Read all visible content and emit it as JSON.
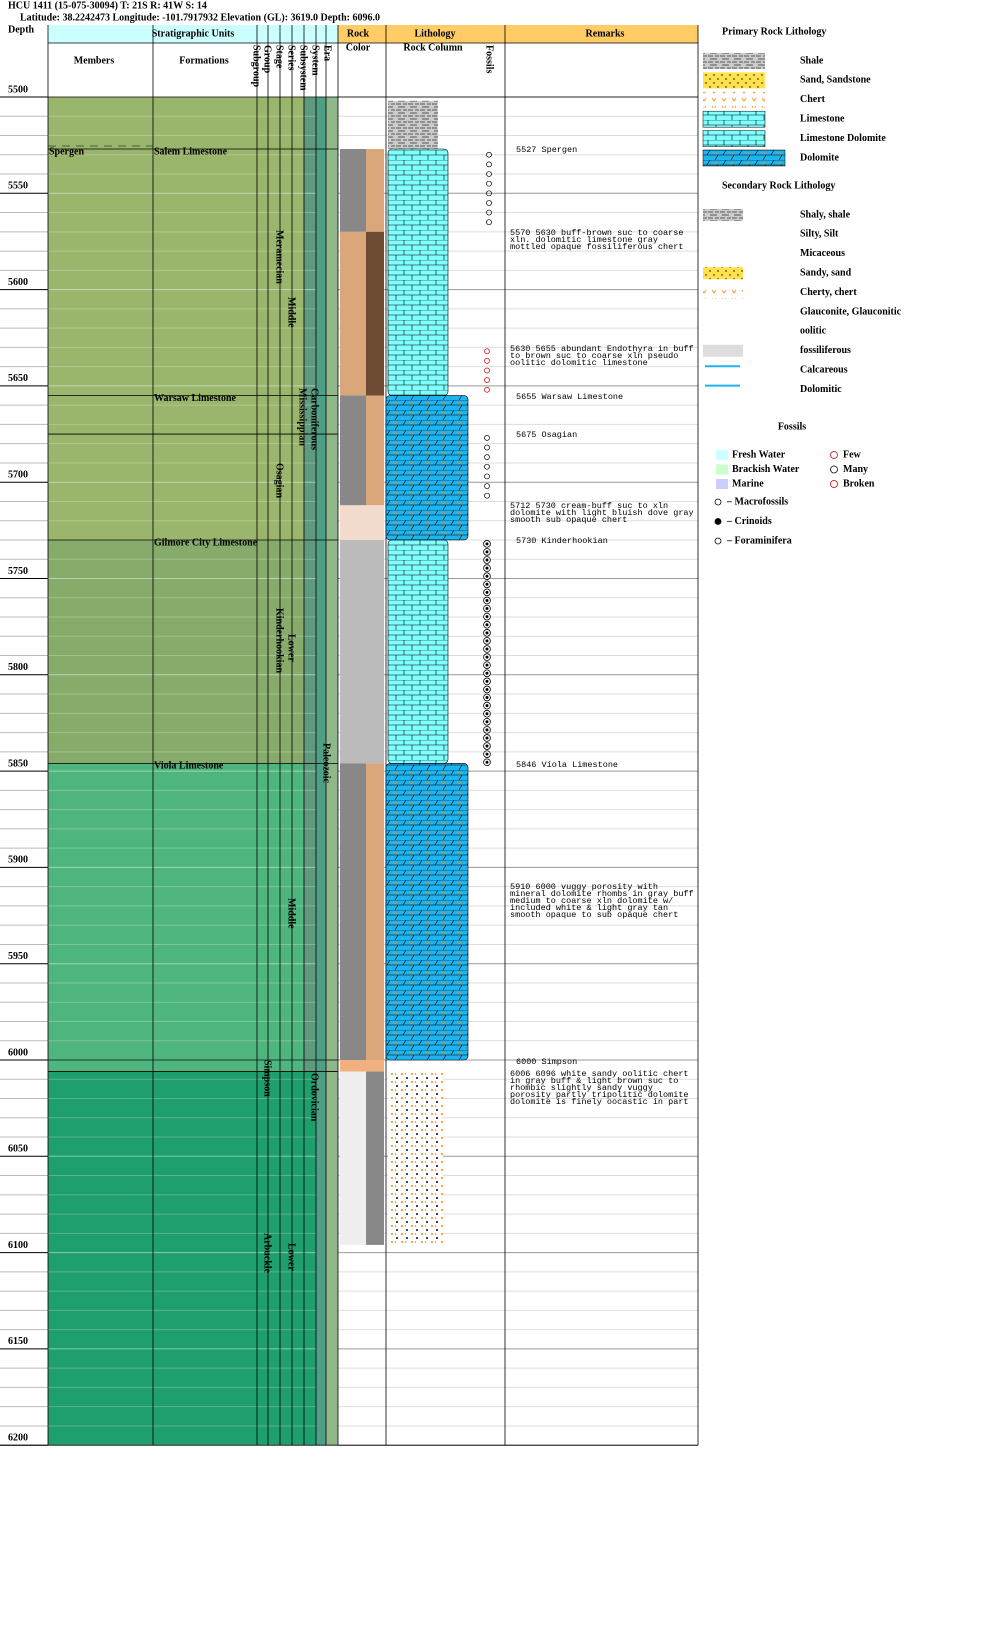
{
  "header": {
    "line1": "HCU 1411 (15-075-30094) T: 21S R: 41W S: 14",
    "line2": "Latitude: 38.2242473 Longitude: -101.7917932 Elevation (GL): 3619.0 Depth: 6096.0"
  },
  "columns": {
    "depth": "Depth",
    "strat": "Stratigraphic Units",
    "members": "Members",
    "formations": "Formations",
    "subgroup": "Subgroup",
    "group": "Group",
    "stage": "Stage",
    "series": "Series",
    "subsystem": "Subsystem",
    "system": "System",
    "era": "Era",
    "rock": "Rock",
    "color": "Color",
    "lithology": "Lithology",
    "rock_column": "Rock Column",
    "fossils": "Fossils",
    "remarks": "Remarks"
  },
  "depths": [
    "5500",
    "5550",
    "5600",
    "5650",
    "5700",
    "5750",
    "5800",
    "5850",
    "5900",
    "5950",
    "6000",
    "6050",
    "6100",
    "6150",
    "6200"
  ],
  "members": [
    "Spergen"
  ],
  "formations": [
    "Salem Limestone",
    "Warsaw Limestone",
    "Gilmore City Limestone",
    "Viola Limestone"
  ],
  "units": [
    "Meramecian",
    "Middle",
    "Mississippian",
    "Carboniferous",
    "Osagian",
    "Kinderhookian",
    "Lower",
    "Paleozoic",
    "Middle",
    "Simpson",
    "Ordovician",
    "Arbuckle",
    "Lower"
  ],
  "remarks": [
    "5527 Spergen",
    "5570 5630 buff-brown suc to coarse xln. dolomitic limestone gray mottled opaque fossiliferous chert",
    "5630 5655 abundant Endothyra in buff to brown suc to coarse xln pseudo oolitic dolomitic limestone",
    "5655 Warsaw Limestone",
    "5675 Osagian",
    "5712 5730 cream-buff suc to xln dolomite with light bluish dove gray smooth sub opaque chert",
    "5730 Kinderhookian",
    "5846 Viola Limestone",
    "5910 6000 vuggy porosity with mineral dolomite rhombs in gray buff medium to coarse xln dolomite w/ included white & light gray tan smooth opaque to sub opaque chert",
    "6000 Simpson",
    "6006 6096 white sandy oolitic chert in gray buff & light brown suc to rhombic slightly sandy vuggy porosity partly tripolitic dolomite dolomite is finely oocastic in part"
  ],
  "legend": {
    "primary_title": "Primary Rock Lithology",
    "primary": [
      "Shale",
      "Sand, Sandstone",
      "Chert",
      "Limestone",
      "Limestone Dolomite",
      "Dolomite"
    ],
    "secondary_title": "Secondary Rock Lithology",
    "secondary": [
      "Shaly, shale",
      "Silty, Silt",
      "Micaceous",
      "Sandy, sand",
      "Cherty, chert",
      "Glauconite, Glauconitic",
      "oolitic",
      "fossiliferous",
      "Calcareous",
      "Dolomitic"
    ],
    "fossils_title": "Fossils",
    "environments": [
      "Fresh Water",
      "Brackish Water",
      "Marine"
    ],
    "abundance": [
      "Few",
      "Many",
      "Broken"
    ],
    "fossil_types": [
      "– Macrofossils",
      "– Crinoids",
      "– Foraminifera"
    ]
  }
}
